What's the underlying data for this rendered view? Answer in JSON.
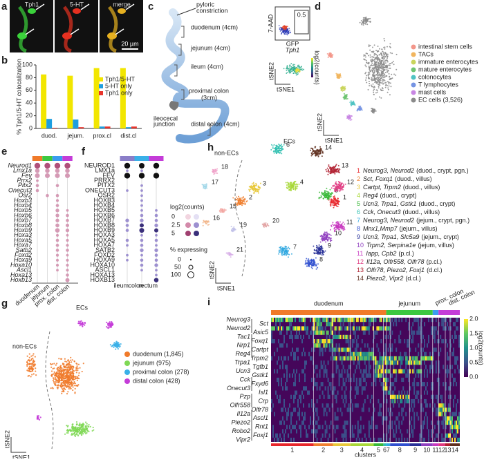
{
  "letters": [
    "a",
    "b",
    "c",
    "d",
    "e",
    "f",
    "g",
    "h",
    "i"
  ],
  "a": {
    "channels": [
      "Tph1",
      "5-HT",
      "merge"
    ],
    "scale": "20 µm"
  },
  "b": {
    "chart_data": {
      "type": "bar",
      "ylabel": "% Tph1/5-HT colocalization",
      "categories": [
        "duod.",
        "jejum.",
        "prox.cl",
        "dist.cl"
      ],
      "series": [
        {
          "name": "Tph1/5-HT",
          "color": "#f2e600",
          "values": [
            85,
            83,
            95,
            95
          ]
        },
        {
          "name": "5-HT only",
          "color": "#1e9ee0",
          "values": [
            15,
            14,
            3,
            2
          ]
        },
        {
          "name": "Tph1 only",
          "color": "#e8342c",
          "values": [
            1,
            2,
            3,
            3
          ]
        }
      ],
      "ylim": [
        0,
        100
      ],
      "yticks": [
        0,
        20,
        40,
        60,
        80,
        100
      ]
    }
  },
  "c": {
    "pyloric": [
      "pyloric",
      "constriction"
    ],
    "segments": [
      "duodenum (4cm)",
      "jejunum (4cm)",
      "ileum (4cm)",
      "proximal colon",
      "(3cm)",
      "distal colon (4cm)"
    ],
    "junction": [
      "ileocecal",
      "junction"
    ],
    "facs": {
      "y": "7-AAD",
      "x": "GFP",
      "gate": "0.5",
      "tag": "Tph1"
    },
    "tsne": {
      "y": "tSNE2",
      "x": "tSNE1",
      "bar": "log2(counts)"
    }
  },
  "d": {
    "legend": [
      {
        "name": "intestinal stem cells",
        "color": "#f3968a"
      },
      {
        "name": "TACs",
        "color": "#f1b55e"
      },
      {
        "name": "immature enterocytes",
        "color": "#c9d55c"
      },
      {
        "name": "mature enterocytes",
        "color": "#6fc472"
      },
      {
        "name": "colonocytes",
        "color": "#4fc3c3"
      },
      {
        "name": "T lymphocytes",
        "color": "#7594e3"
      },
      {
        "name": "mast cells",
        "color": "#c886e3"
      },
      {
        "name": "EC cells (3,526)",
        "color": "#8a8a8a"
      }
    ],
    "x": "tSNE1",
    "y": "tSNE2"
  },
  "e": {
    "columns": [
      "duodenum",
      "jejunum",
      "prox. colon",
      "dist. colon"
    ],
    "colors": [
      "#f07a2a",
      "#3cc840",
      "#3a9cf0",
      "#c43cd8"
    ],
    "genes": [
      "Neurod1",
      "Lmx1a",
      "Fev",
      "Prrx2",
      "Pitx2",
      "Onecut3",
      "Osr2",
      "Hoxb3",
      "Hoxb4",
      "Hoxb5",
      "Hoxb6",
      "Hoxb7",
      "Hoxb8",
      "Hoxb9",
      "Hoxa3",
      "Hoxa5",
      "Hoxa7",
      "Satb2",
      "Foxd2",
      "Hoxa9",
      "Hoxa10",
      "Ascl1",
      "Hoxa13",
      "Hoxb13"
    ],
    "pct": [
      [
        100,
        100,
        100,
        100
      ],
      [
        60,
        60,
        60,
        60
      ],
      [
        70,
        70,
        70,
        70
      ],
      [
        20,
        0,
        0,
        0
      ],
      [
        30,
        0,
        30,
        0
      ],
      [
        30,
        0,
        0,
        0
      ],
      [
        0,
        30,
        30,
        0
      ],
      [
        0,
        0,
        25,
        0
      ],
      [
        0,
        0,
        30,
        0
      ],
      [
        0,
        0,
        40,
        20
      ],
      [
        0,
        0,
        40,
        30
      ],
      [
        0,
        0,
        40,
        30
      ],
      [
        0,
        0,
        45,
        35
      ],
      [
        0,
        0,
        60,
        40
      ],
      [
        0,
        0,
        25,
        20
      ],
      [
        0,
        0,
        30,
        25
      ],
      [
        0,
        0,
        30,
        25
      ],
      [
        0,
        0,
        30,
        30
      ],
      [
        0,
        0,
        25,
        20
      ],
      [
        0,
        0,
        25,
        25
      ],
      [
        0,
        0,
        25,
        25
      ],
      [
        0,
        0,
        20,
        25
      ],
      [
        0,
        0,
        0,
        30
      ],
      [
        0,
        0,
        0,
        50
      ]
    ]
  },
  "f": {
    "columns": [
      "ileum",
      "colon",
      "rectum"
    ],
    "colors": [
      "#8a7ec8",
      "#3ab0e8",
      "#c43cd8"
    ],
    "genes": [
      "NEUROD1",
      "LMX1a",
      "FEV",
      "PRRX2",
      "PITX2",
      "ONECUT3",
      "OSR2",
      "HOXB3",
      "HOXB4",
      "HOXB5",
      "HOXB6",
      "HOXB7",
      "HOXB8",
      "HOXB9",
      "HOXA3",
      "HOXA5",
      "HOXA7",
      "SATB2",
      "FOXD2",
      "HOXA9",
      "HOXA10",
      "ASCL1",
      "HOXA13",
      "HOXB13"
    ],
    "pct": [
      [
        100,
        90,
        100
      ],
      [
        20,
        20,
        0
      ],
      [
        100,
        100,
        100
      ],
      [
        0,
        0,
        0
      ],
      [
        0,
        20,
        0
      ],
      [
        20,
        20,
        0
      ],
      [
        0,
        20,
        0
      ],
      [
        0,
        20,
        0
      ],
      [
        0,
        20,
        0
      ],
      [
        0,
        20,
        20
      ],
      [
        0,
        30,
        30
      ],
      [
        40,
        40,
        30
      ],
      [
        30,
        50,
        40
      ],
      [
        30,
        70,
        50
      ],
      [
        0,
        20,
        20
      ],
      [
        30,
        30,
        30
      ],
      [
        20,
        30,
        20
      ],
      [
        0,
        40,
        40
      ],
      [
        20,
        20,
        30
      ],
      [
        20,
        30,
        30
      ],
      [
        0,
        30,
        40
      ],
      [
        0,
        20,
        20
      ],
      [
        0,
        0,
        20
      ],
      [
        0,
        0,
        60
      ]
    ]
  },
  "dotlegend": {
    "counts": "log2(counts)",
    "countlevels": [
      "0",
      "2.5",
      "5"
    ],
    "pct": "% expressing",
    "pctlevels": [
      "0",
      "50",
      "100"
    ]
  },
  "g": {
    "legend": [
      {
        "name": "duodenum (1,845)",
        "color": "#f07a2a"
      },
      {
        "name": "jejunum (975)",
        "color": "#7fd855"
      },
      {
        "name": "proximal colon (278)",
        "color": "#3ab0e8"
      },
      {
        "name": "distal colon (428)",
        "color": "#c43cd8"
      }
    ],
    "ecs": "ECs",
    "nonecs": "non-ECs",
    "x": "tSNE1",
    "y": "tSNE2"
  },
  "h": {
    "ecs": "ECs",
    "nonecs": "non-ECs",
    "x": "tSNE1",
    "y": "tSNE2",
    "plotlabels": [
      "1",
      "2",
      "3",
      "4",
      "5",
      "6",
      "7",
      "8",
      "9",
      "10",
      "11",
      "12",
      "13",
      "14",
      "15",
      "16",
      "17",
      "18",
      "19",
      "20",
      "21"
    ],
    "legend": [
      {
        "num": "1",
        "genes": "Neurog3, Neurod2",
        "note": "(duod., crypt, pgn.)",
        "color": "#e8262b"
      },
      {
        "num": "2",
        "genes": "Sct, Foxq1",
        "note": "(duod., villus)",
        "color": "#f08030"
      },
      {
        "num": "3",
        "genes": "Cartpt, Trpm2",
        "note": "(duod., villus)",
        "color": "#e8c83a"
      },
      {
        "num": "4",
        "genes": "Reg4",
        "note": "(duod., crypt)",
        "color": "#a8d838"
      },
      {
        "num": "5",
        "genes": "Ucn3, Trpa1, Gstk1",
        "note": "(duod., crypt)",
        "color": "#38b838"
      },
      {
        "num": "6",
        "genes": "Cck, Onecut3",
        "note": "(duod., villus)",
        "color": "#30c0b0"
      },
      {
        "num": "7",
        "genes": "Neurog3, Neurod2",
        "note": "(jejum., crypt, pgn.)",
        "color": "#30a8e0"
      },
      {
        "num": "8",
        "genes": "Mnx1,Mmp7",
        "note": "(jejum., villus)",
        "color": "#3050d0"
      },
      {
        "num": "9",
        "genes": "Ucn3, Trpa1, Slc5a9",
        "note": "(jejum., crypt)",
        "color": "#283098"
      },
      {
        "num": "10",
        "genes": "Trpm2, Serpina1e",
        "note": "(jejum, villus)",
        "color": "#9040c0"
      },
      {
        "num": "11",
        "genes": "Iapp, Cpb2",
        "note": "(p.cl.)",
        "color": "#c838c0"
      },
      {
        "num": "12",
        "genes": "Il12a, Olfr558, Olfr78",
        "note": "(p.cl.)",
        "color": "#e03880"
      },
      {
        "num": "13",
        "genes": "Olfr78, Piezo2, Foxj1",
        "note": "(d.cl.)",
        "color": "#b02030"
      },
      {
        "num": "14",
        "genes": "Piezo2, Vipr2",
        "note": "(d.cl.)",
        "color": "#603020"
      }
    ]
  },
  "i": {
    "groups": [
      "duodenum",
      "jejunum",
      "prox. colon",
      "dist. colon"
    ],
    "genes": [
      "Neurog3",
      "Sct",
      "Neurod2",
      "Asic5",
      "Tac1",
      "Foxq1",
      "Nrp1",
      "Cartpt",
      "Reg4",
      "Trpm2",
      "Trpa1",
      "Tgfb1",
      "Ucn3",
      "Gstk1",
      "Cck",
      "Fxyd6",
      "Onecut3",
      "Isl1",
      "Pzp",
      "Crp",
      "Olfr558",
      "Olfr78",
      "Il12a",
      "Ascl1",
      "Piezo2",
      "Rnt1",
      "Robo2",
      "Foxj1",
      "Vipr2"
    ],
    "clusters": [
      "1",
      "2",
      "3",
      "4",
      "5",
      "6",
      "7",
      "8",
      "9",
      "10",
      "11",
      "12",
      "13",
      "14"
    ],
    "xlabel": "clusters",
    "bar": "log2(counts)",
    "barticks": [
      "0.0",
      "0.5",
      "1.0",
      "1.5",
      "2.0"
    ]
  }
}
